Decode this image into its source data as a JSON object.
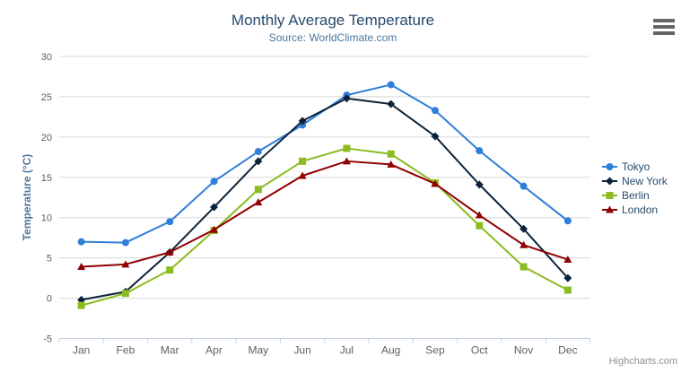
{
  "header": {
    "title": "Monthly Average Temperature",
    "subtitle": "Source: WorldClimate.com"
  },
  "credit": "Highcharts.com",
  "menu_icon": "hamburger-icon",
  "colors": {
    "title": "#274b6d",
    "subtitle": "#4d759e",
    "axis_title": "#4d759e",
    "tick_label": "#606060",
    "gridline": "#d8d8d8",
    "axis_line": "#c0d0e0",
    "legend_text": "#274b6d",
    "credit_text": "#909090",
    "burger": "#666666"
  },
  "chart_data": {
    "type": "line",
    "title": "Monthly Average Temperature",
    "subtitle": "Source: WorldClimate.com",
    "xlabel": "",
    "ylabel": "Temperature (°C)",
    "categories": [
      "Jan",
      "Feb",
      "Mar",
      "Apr",
      "May",
      "Jun",
      "Jul",
      "Aug",
      "Sep",
      "Oct",
      "Nov",
      "Dec"
    ],
    "ylim": [
      -5,
      30
    ],
    "yticks": [
      -5,
      0,
      5,
      10,
      15,
      20,
      25,
      30
    ],
    "grid": "horizontal",
    "legend_position": "right",
    "series": [
      {
        "name": "Tokyo",
        "color": "#2f7ed8",
        "marker": "circle",
        "values": [
          7.0,
          6.9,
          9.5,
          14.5,
          18.2,
          21.5,
          25.2,
          26.5,
          23.3,
          18.3,
          13.9,
          9.6
        ]
      },
      {
        "name": "New York",
        "color": "#0d233a",
        "marker": "diamond",
        "values": [
          -0.2,
          0.8,
          5.7,
          11.3,
          17.0,
          22.0,
          24.8,
          24.1,
          20.1,
          14.1,
          8.6,
          2.5
        ]
      },
      {
        "name": "Berlin",
        "color": "#8bbc21",
        "marker": "square",
        "values": [
          -0.9,
          0.6,
          3.5,
          8.4,
          13.5,
          17.0,
          18.6,
          17.9,
          14.3,
          9.0,
          3.9,
          1.0
        ]
      },
      {
        "name": "London",
        "color": "#910000",
        "marker": "triangle",
        "values": [
          3.9,
          4.2,
          5.7,
          8.5,
          11.9,
          15.2,
          17.0,
          16.6,
          14.2,
          10.3,
          6.6,
          4.8
        ]
      }
    ]
  }
}
